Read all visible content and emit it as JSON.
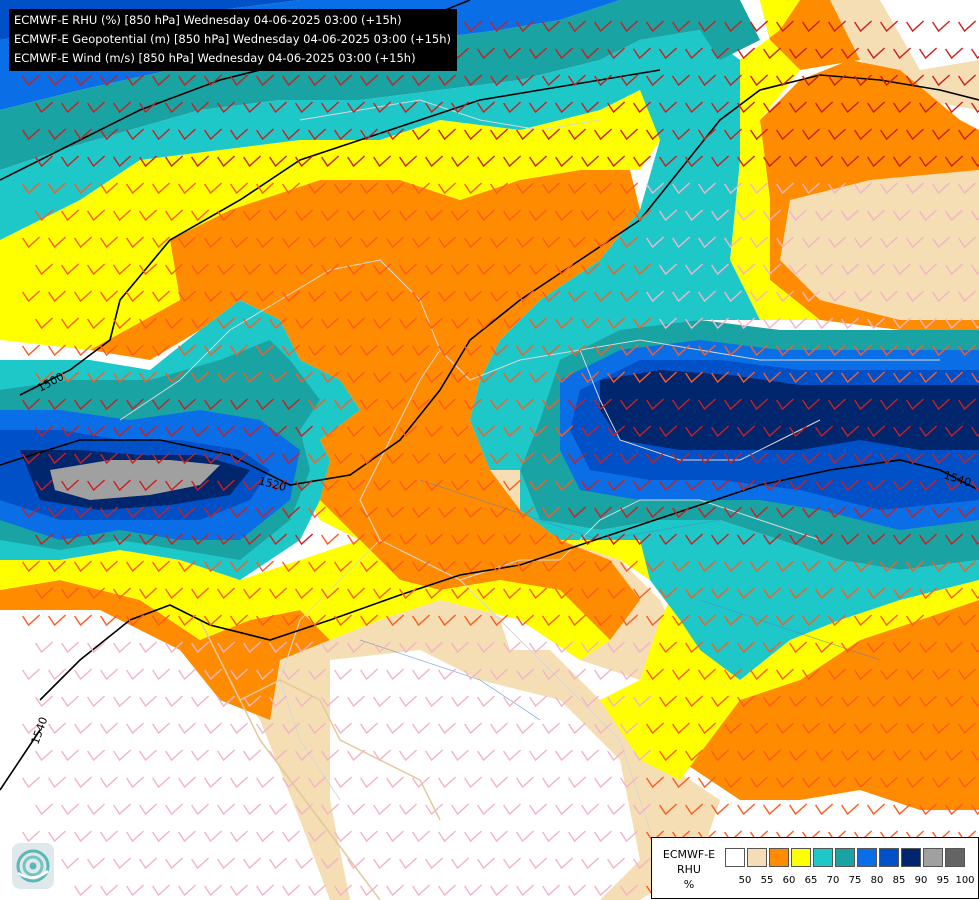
{
  "header": {
    "lines": [
      "ECMWF-E RHU (%) [850 hPa] Wednesday 04-06-2025 03:00 (+15h)",
      "ECMWF-E Geopotential (m) [850 hPa] Wednesday 04-06-2025 03:00 (+15h)",
      "ECMWF-E Wind (m/s) [850 hPa] Wednesday 04-06-2025 03:00 (+15h)"
    ]
  },
  "legend": {
    "title_line1": "ECMWF-E",
    "title_line2": "RHU",
    "title_line3": "%",
    "colors": [
      "#ffffff",
      "#f5deb3",
      "#ff8c00",
      "#ffff00",
      "#1ec8c8",
      "#1aa3a3",
      "#0a6ee6",
      "#0050c8",
      "#00266e",
      "#a0a0a0",
      "#646464"
    ],
    "ticks": [
      "50",
      "55",
      "60",
      "65",
      "70",
      "75",
      "80",
      "85",
      "90",
      "95",
      "100"
    ]
  },
  "isolines": {
    "labels": [
      "1500",
      "1520",
      "1540",
      "1540"
    ]
  },
  "logo": {
    "icon": "ecmwf-logo-icon"
  }
}
